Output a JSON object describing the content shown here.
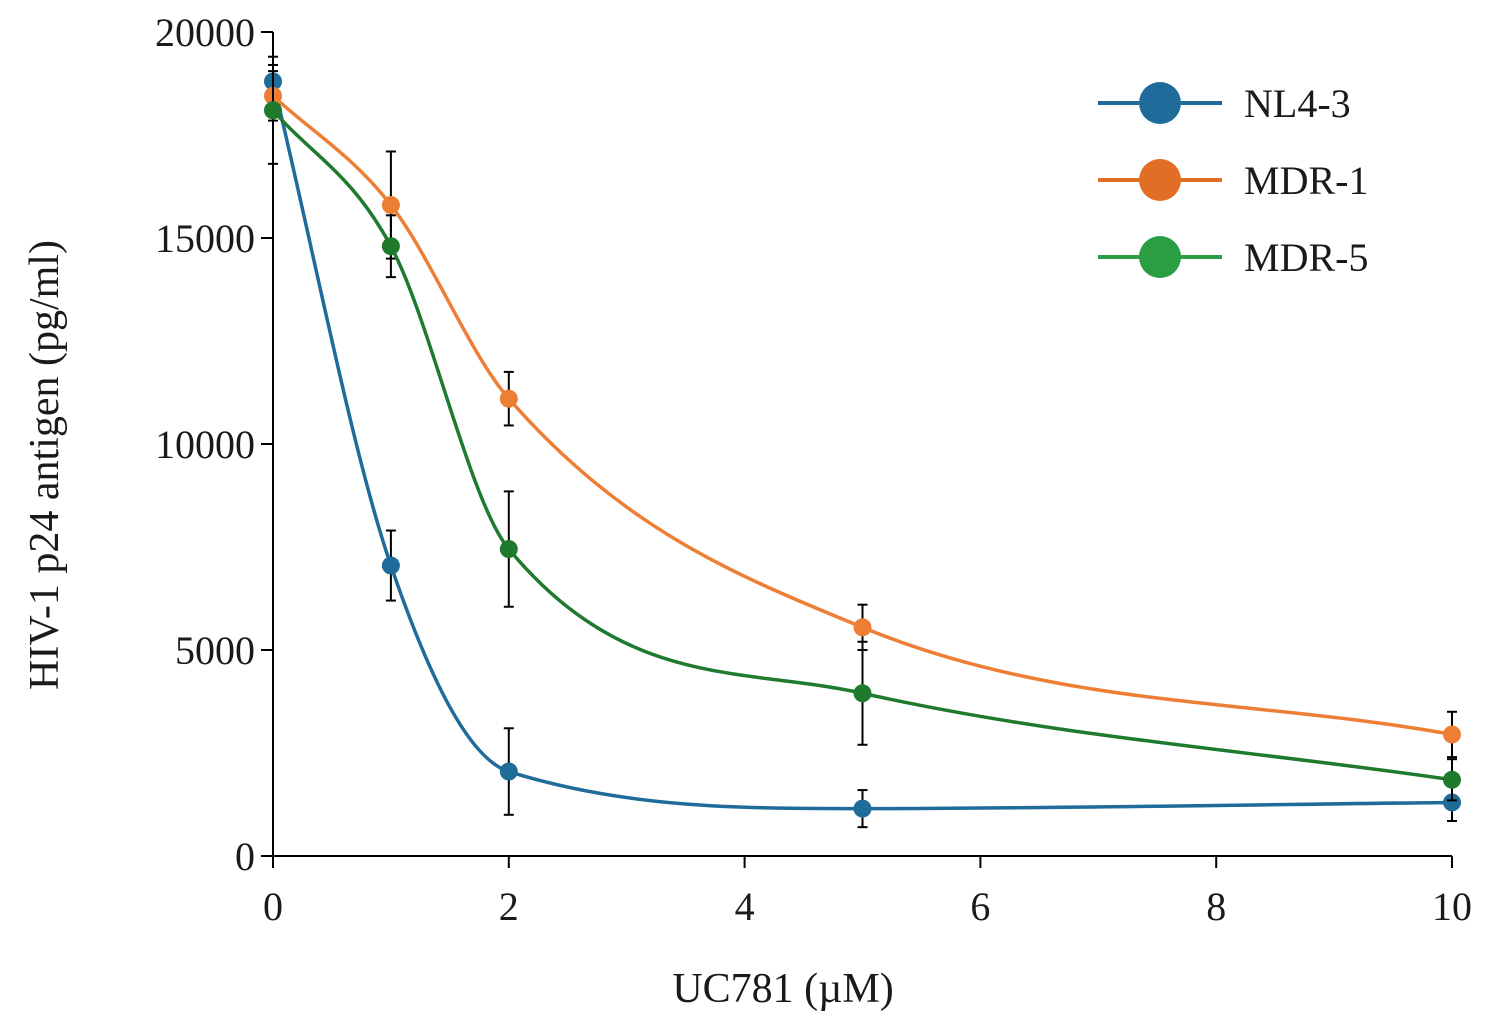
{
  "chart_data": {
    "type": "line",
    "xlabel": "UC781 (µM)",
    "ylabel": "HIV-1 p24 antigen (pg/ml)",
    "xlim": [
      0,
      10
    ],
    "ylim": [
      0,
      20000
    ],
    "x_ticks": [
      0,
      2,
      4,
      6,
      8,
      10
    ],
    "x_tick_labels": [
      "0",
      "2",
      "4",
      "6",
      "8",
      "10"
    ],
    "y_ticks": [
      0,
      5000,
      10000,
      15000,
      20000
    ],
    "y_tick_labels": [
      "0",
      "5000",
      "10000",
      "15000",
      "20000"
    ],
    "grid": false,
    "legend_position": "top-right",
    "smoothed": true,
    "x": [
      0,
      1,
      2,
      5,
      10
    ],
    "series": [
      {
        "name": "NL4-3",
        "color": "#1f6b99",
        "values": [
          18800,
          7050,
          2050,
          1150,
          1300
        ],
        "errors": [
          400,
          850,
          1050,
          450,
          450
        ]
      },
      {
        "name": "MDR-1",
        "color": "#ef7e35",
        "values": [
          18450,
          15800,
          11100,
          5550,
          2950
        ],
        "errors": [
          600,
          1300,
          650,
          550,
          550
        ]
      },
      {
        "name": "MDR-5",
        "color": "#1f7a2e",
        "values": [
          18100,
          14800,
          7450,
          3950,
          1850
        ],
        "errors": [
          1300,
          750,
          1400,
          1250,
          500
        ]
      }
    ],
    "legend_colors": {
      "NL4-3": "#1f6b99",
      "MDR-1": "#e26e26",
      "MDR-5": "#2b9e44"
    }
  }
}
